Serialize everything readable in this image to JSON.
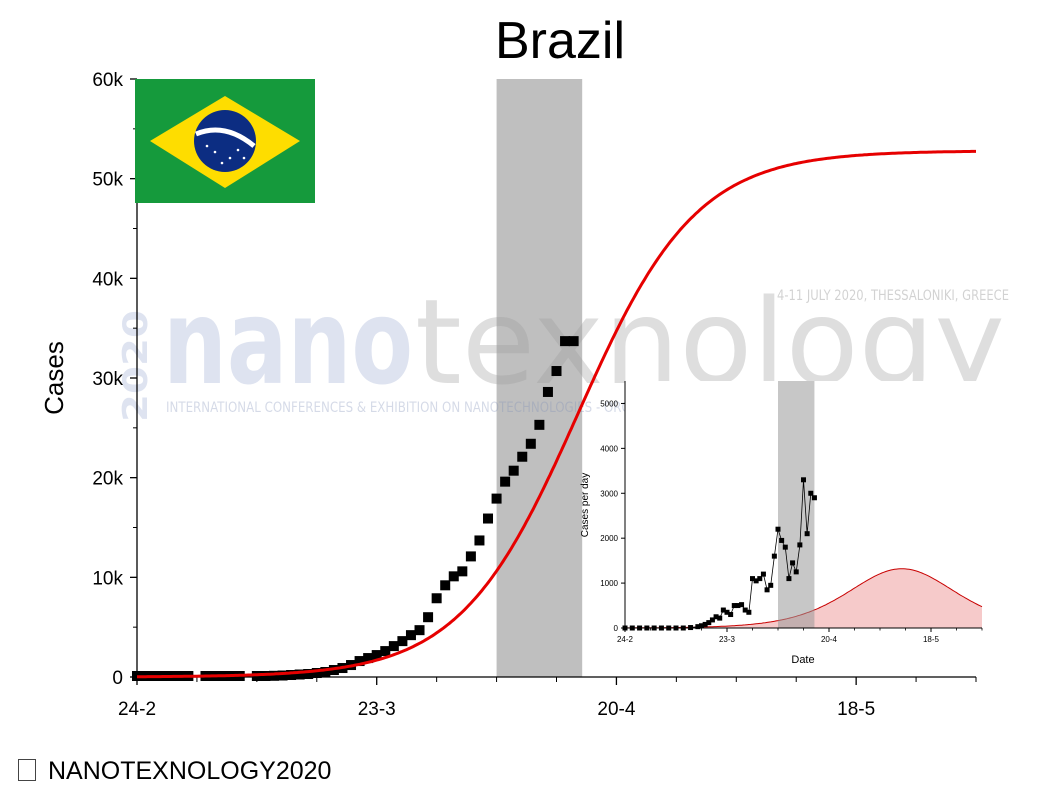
{
  "chart_data": [
    {
      "type": "scatter",
      "title": "Brazil",
      "xlabel": "",
      "ylabel": "Cases",
      "x_tick_labels": [
        {
          "day": 0,
          "label": "24-2"
        },
        {
          "day": 28,
          "label": "23-3"
        },
        {
          "day": 56,
          "label": "20-4"
        },
        {
          "day": 84,
          "label": "18-5"
        }
      ],
      "xlim_days": [
        0,
        98
      ],
      "ylim": [
        0,
        60000
      ],
      "y_tick_labels": [
        {
          "value": 0,
          "label": "0"
        },
        {
          "value": 10000,
          "label": "10k"
        },
        {
          "value": 20000,
          "label": "20k"
        },
        {
          "value": 30000,
          "label": "30k"
        },
        {
          "value": 40000,
          "label": "40k"
        },
        {
          "value": 50000,
          "label": "50k"
        },
        {
          "value": 60000,
          "label": "60k"
        }
      ],
      "shaded_interval_days": [
        42,
        52
      ],
      "series": [
        {
          "role": "data",
          "marker": "square",
          "color": "#000000",
          "x": [
            0,
            1,
            2,
            3,
            4,
            5,
            6,
            8,
            9,
            10,
            11,
            12,
            14,
            15,
            16,
            17,
            18,
            19,
            20,
            21,
            22,
            23,
            24,
            25,
            26,
            27,
            28,
            29,
            30,
            31,
            32,
            33,
            34,
            35,
            36,
            37,
            38,
            39,
            40,
            41,
            42,
            43,
            44,
            45,
            46,
            47,
            48,
            49,
            50,
            51
          ],
          "y": [
            100,
            100,
            100,
            100,
            100,
            100,
            100,
            100,
            100,
            100,
            100,
            100,
            100,
            100,
            120,
            150,
            200,
            250,
            300,
            400,
            500,
            700,
            900,
            1200,
            1600,
            1900,
            2200,
            2600,
            3100,
            3600,
            4200,
            4700,
            6000,
            7900,
            9200,
            10100,
            10600,
            12100,
            13700,
            15900,
            17900,
            19600,
            20700,
            22100,
            23400,
            25300,
            28600,
            30700,
            33700,
            33700
          ]
        },
        {
          "role": "fit",
          "color": "#e60000",
          "logistic": {
            "K": 52800,
            "t0_day": 51.5,
            "rate": 0.145
          }
        }
      ]
    },
    {
      "type": "area",
      "title": "",
      "xlabel": "Date",
      "ylabel": "Cases per day",
      "x_tick_labels": [
        {
          "day": 0,
          "label": "24-2"
        },
        {
          "day": 28,
          "label": "23-3"
        },
        {
          "day": 56,
          "label": "20-4"
        },
        {
          "day": 84,
          "label": "18-5"
        }
      ],
      "xlim_days": [
        0,
        98
      ],
      "ylim": [
        0,
        5500
      ],
      "y_tick_labels": [
        {
          "value": 0,
          "label": "0"
        },
        {
          "value": 1000,
          "label": "1000"
        },
        {
          "value": 2000,
          "label": "2000"
        },
        {
          "value": 3000,
          "label": "3000"
        },
        {
          "value": 4000,
          "label": "4000"
        },
        {
          "value": 5000,
          "label": "5000"
        }
      ],
      "shaded_interval_days": [
        42,
        52
      ],
      "series": [
        {
          "role": "data",
          "marker": "square",
          "color": "#000000",
          "x": [
            0,
            2,
            4,
            6,
            8,
            10,
            12,
            14,
            16,
            18,
            20,
            21,
            22,
            23,
            24,
            25,
            26,
            27,
            28,
            29,
            30,
            31,
            32,
            33,
            34,
            35,
            36,
            37,
            38,
            39,
            40,
            41,
            42,
            43,
            44,
            45,
            46,
            47,
            48,
            49,
            50,
            51,
            52
          ],
          "y": [
            0,
            0,
            0,
            0,
            0,
            0,
            0,
            0,
            0,
            10,
            30,
            50,
            80,
            120,
            180,
            250,
            220,
            400,
            350,
            300,
            500,
            500,
            520,
            400,
            350,
            1100,
            1050,
            1100,
            1200,
            850,
            950,
            1600,
            2200,
            1950,
            1800,
            1100,
            1450,
            1250,
            1850,
            3300,
            2100,
            3000,
            2900
          ]
        },
        {
          "role": "fit",
          "color": "#c80000",
          "fill": "#f6caca",
          "logistic_derivative": {
            "K": 52800,
            "t0_day": 76,
            "rate": 0.1
          }
        }
      ]
    }
  ],
  "watermark": {
    "brand": "nanotexnology",
    "year": "2020",
    "event": "4-11 JULY 2020, THESSALONIKI, GREECE",
    "subtitle": "INTERNATIONAL CONFERENCES & EXHIBITION ON NANOTECHNOLOGIES - ORGANIC ELECTRONICS & NANOMEDICINE"
  },
  "colors": {
    "fit_line": "#e60000",
    "shade": "#bfbfbf",
    "inset_fill": "#f6caca",
    "flag_green": "#159a3c",
    "flag_yellow": "#fedd00",
    "flag_blue": "#0c2d82"
  },
  "footer": {
    "text": "NANOTEXNOLOGY2020"
  }
}
